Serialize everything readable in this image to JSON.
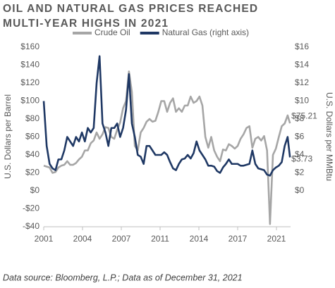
{
  "chart_data": {
    "type": "line",
    "title": "OIL AND NATURAL GAS PRICES REACHED MULTI-YEAR HIGHS IN 2021",
    "source": "Data source: Bloomberg, L.P.; Data as of December 31, 2021",
    "y_label": "U.S. Dollars per Barrel",
    "y2_label": "U.S. Dollars per MMBtu",
    "x": [
      2001,
      2001.25,
      2001.5,
      2001.75,
      2002,
      2002.25,
      2002.5,
      2002.75,
      2003,
      2003.25,
      2003.5,
      2003.75,
      2004,
      2004.25,
      2004.5,
      2004.75,
      2005,
      2005.25,
      2005.5,
      2005.75,
      2006,
      2006.25,
      2006.5,
      2006.75,
      2007,
      2007.25,
      2007.5,
      2007.75,
      2008,
      2008.25,
      2008.5,
      2008.75,
      2009,
      2009.25,
      2009.5,
      2009.75,
      2010,
      2010.25,
      2010.5,
      2010.75,
      2011,
      2011.25,
      2011.5,
      2011.75,
      2012,
      2012.25,
      2012.5,
      2012.75,
      2013,
      2013.25,
      2013.5,
      2013.75,
      2014,
      2014.25,
      2014.5,
      2014.75,
      2015,
      2015.25,
      2015.5,
      2015.75,
      2016,
      2016.25,
      2016.5,
      2016.75,
      2017,
      2017.25,
      2017.5,
      2017.75,
      2018,
      2018.25,
      2018.5,
      2018.75,
      2019,
      2019.25,
      2019.5,
      2019.75,
      2020,
      2020.25,
      2020.5,
      2020.75,
      2021,
      2021.25,
      2021.5,
      2021.75,
      2021.95
    ],
    "series": [
      {
        "name": "Crude Oil",
        "color": "#a6a6a6",
        "values": [
          28,
          27,
          26,
          20,
          21,
          26,
          28,
          29,
          33,
          29,
          29,
          31,
          35,
          38,
          45,
          45,
          53,
          56,
          65,
          58,
          63,
          71,
          70,
          60,
          58,
          68,
          76,
          92,
          100,
          133,
          110,
          50,
          45,
          65,
          70,
          77,
          80,
          77,
          78,
          88,
          100,
          100,
          88,
          98,
          103,
          88,
          92,
          88,
          95,
          95,
          105,
          98,
          100,
          105,
          95,
          60,
          48,
          60,
          45,
          38,
          33,
          46,
          45,
          52,
          50,
          47,
          50,
          58,
          63,
          70,
          72,
          48,
          58,
          60,
          56,
          61,
          45,
          -37,
          40,
          47,
          60,
          72,
          75,
          84,
          75.21
        ],
        "end_label": "$75.21"
      },
      {
        "name": "Natural Gas (right axis)",
        "color": "#1f3864",
        "axis": "y2",
        "values": [
          10,
          5,
          3,
          2.5,
          2.3,
          3.5,
          3.5,
          4.5,
          6,
          5.5,
          5,
          6,
          5.5,
          6.5,
          5.5,
          7,
          6.5,
          7,
          12,
          15,
          7.5,
          6.5,
          5,
          7,
          7,
          7.5,
          6,
          7,
          9,
          13,
          7.5,
          6,
          4,
          3.8,
          3,
          5,
          5,
          4.5,
          4,
          4,
          4,
          4.3,
          4,
          3.2,
          2.5,
          2.3,
          3,
          3.5,
          3.6,
          4,
          3.6,
          4.2,
          5.5,
          4.5,
          4,
          3.5,
          2.8,
          2.8,
          2.7,
          2.2,
          2,
          2.6,
          3,
          3.5,
          3,
          3,
          3,
          2.8,
          2.8,
          2.9,
          3,
          4.5,
          3,
          2.5,
          2.4,
          2.3,
          1.8,
          1.7,
          2.3,
          2.6,
          2.8,
          3.2,
          5,
          6,
          3.73
        ],
        "end_label": "$3.73"
      }
    ],
    "xlim": [
      2001,
      2022
    ],
    "xticks": [
      {
        "value": 2001,
        "label": "2001"
      },
      {
        "value": 2004.3,
        "label": "2004"
      },
      {
        "value": 2007.6,
        "label": "2007"
      },
      {
        "value": 2010.9,
        "label": "2011"
      },
      {
        "value": 2014.2,
        "label": "2014"
      },
      {
        "value": 2017.5,
        "label": "2017"
      },
      {
        "value": 2020.8,
        "label": "2021"
      }
    ],
    "ylim": [
      -40,
      160
    ],
    "yticks": [
      {
        "value": -40,
        "label": "-$40"
      },
      {
        "value": -20,
        "label": "-$20"
      },
      {
        "value": 0,
        "label": "$0"
      },
      {
        "value": 20,
        "label": "$20"
      },
      {
        "value": 40,
        "label": "$40"
      },
      {
        "value": 60,
        "label": "$60"
      },
      {
        "value": 80,
        "label": "$80"
      },
      {
        "value": 100,
        "label": "$100"
      },
      {
        "value": 120,
        "label": "$120"
      },
      {
        "value": 140,
        "label": "$140"
      },
      {
        "value": 160,
        "label": "$160"
      }
    ],
    "y2lim": [
      -4,
      16
    ],
    "y2ticks": [
      {
        "value": 0,
        "label": "$0"
      },
      {
        "value": 2,
        "label": "$2"
      },
      {
        "value": 4,
        "label": "$4"
      },
      {
        "value": 6,
        "label": "$6"
      },
      {
        "value": 8,
        "label": "$8"
      },
      {
        "value": 10,
        "label": "$10"
      },
      {
        "value": 12,
        "label": "$12"
      },
      {
        "value": 14,
        "label": "$14"
      },
      {
        "value": 16,
        "label": "$16"
      }
    ]
  }
}
